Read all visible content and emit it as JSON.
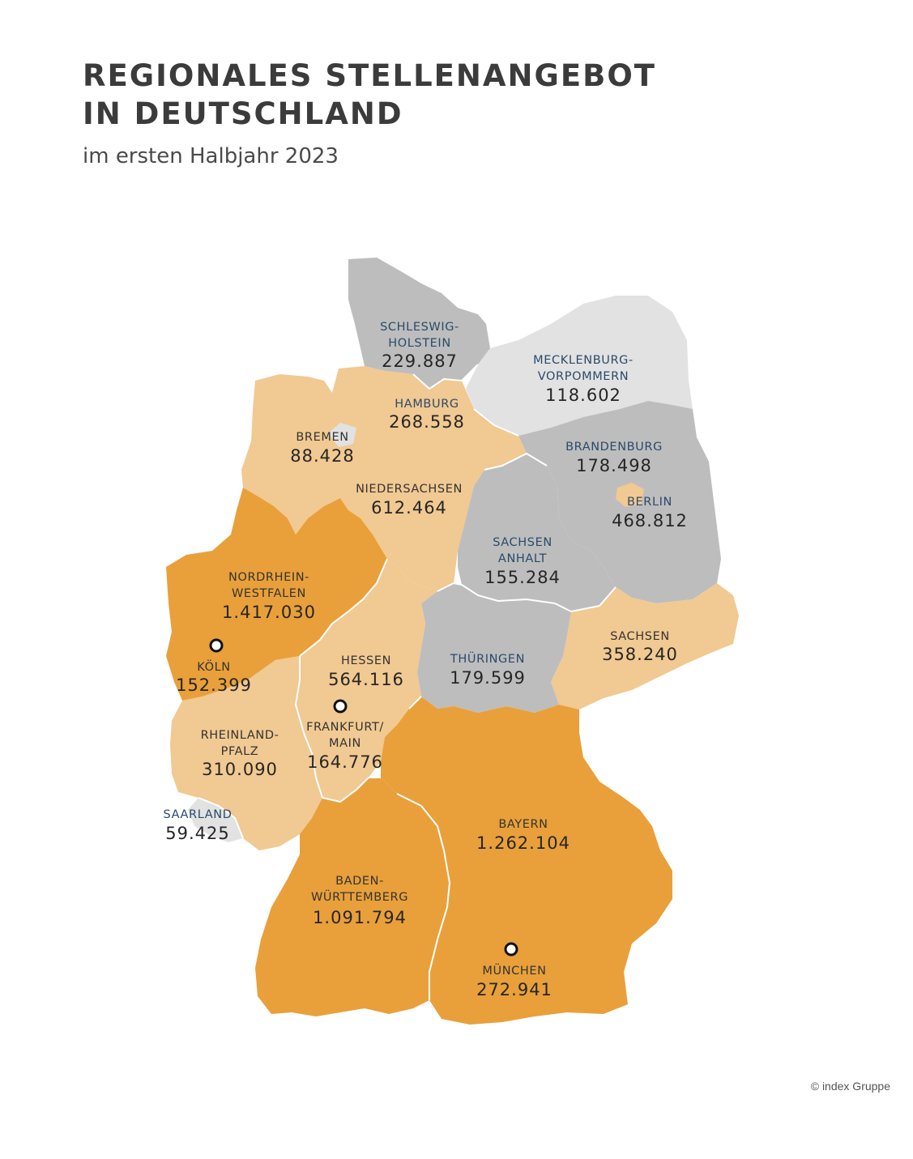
{
  "header": {
    "title_line1": "REGIONALES STELLENANGEBOT",
    "title_line2": "IN DEUTSCHLAND",
    "subtitle": "im ersten Halbjahr 2023"
  },
  "colors": {
    "dark_orange": "#e9a03a",
    "light_orange": "#f1c992",
    "grey": "#bdbdbd",
    "light_grey": "#e2e2e2",
    "label_blue": "#2b4a6b",
    "label_dark": "#333333"
  },
  "states": {
    "schleswig_holstein": {
      "name1": "SCHLESWIG-",
      "name2": "HOLSTEIN",
      "value": "229.887"
    },
    "mecklenburg_vorpommern": {
      "name1": "MECKLENBURG-",
      "name2": "VORPOMMERN",
      "value": "118.602"
    },
    "hamburg": {
      "name1": "HAMBURG",
      "value": "268.558"
    },
    "bremen": {
      "name1": "BREMEN",
      "value": "88.428"
    },
    "brandenburg": {
      "name1": "BRANDENBURG",
      "value": "178.498"
    },
    "berlin": {
      "name1": "BERLIN",
      "value": "468.812"
    },
    "niedersachsen": {
      "name1": "NIEDERSACHSEN",
      "value": "612.464"
    },
    "sachsen_anhalt": {
      "name1": "SACHSEN",
      "name2": "ANHALT",
      "value": "155.284"
    },
    "nordrhein_westfalen": {
      "name1": "NORDRHEIN-",
      "name2": "WESTFALEN",
      "value": "1.417.030"
    },
    "hessen": {
      "name1": "HESSEN",
      "value": "564.116"
    },
    "thueringen": {
      "name1": "THÜRINGEN",
      "value": "179.599"
    },
    "sachsen": {
      "name1": "SACHSEN",
      "value": "358.240"
    },
    "rheinland_pfalz": {
      "name1": "RHEINLAND-",
      "name2": "PFALZ",
      "value": "310.090"
    },
    "saarland": {
      "name1": "SAARLAND",
      "value": "59.425"
    },
    "bayern": {
      "name1": "BAYERN",
      "value": "1.262.104"
    },
    "baden_wuerttemberg": {
      "name1": "BADEN-",
      "name2": "WÜRTTEMBERG",
      "value": "1.091.794"
    }
  },
  "cities": {
    "koeln": {
      "name1": "KÖLN",
      "value": "152.399"
    },
    "frankfurt": {
      "name1": "FRANKFURT/",
      "name2": "MAIN",
      "value": "164.776"
    },
    "muenchen": {
      "name1": "MÜNCHEN",
      "value": "272.941"
    }
  },
  "footer": {
    "copyright": "© index Gruppe"
  }
}
